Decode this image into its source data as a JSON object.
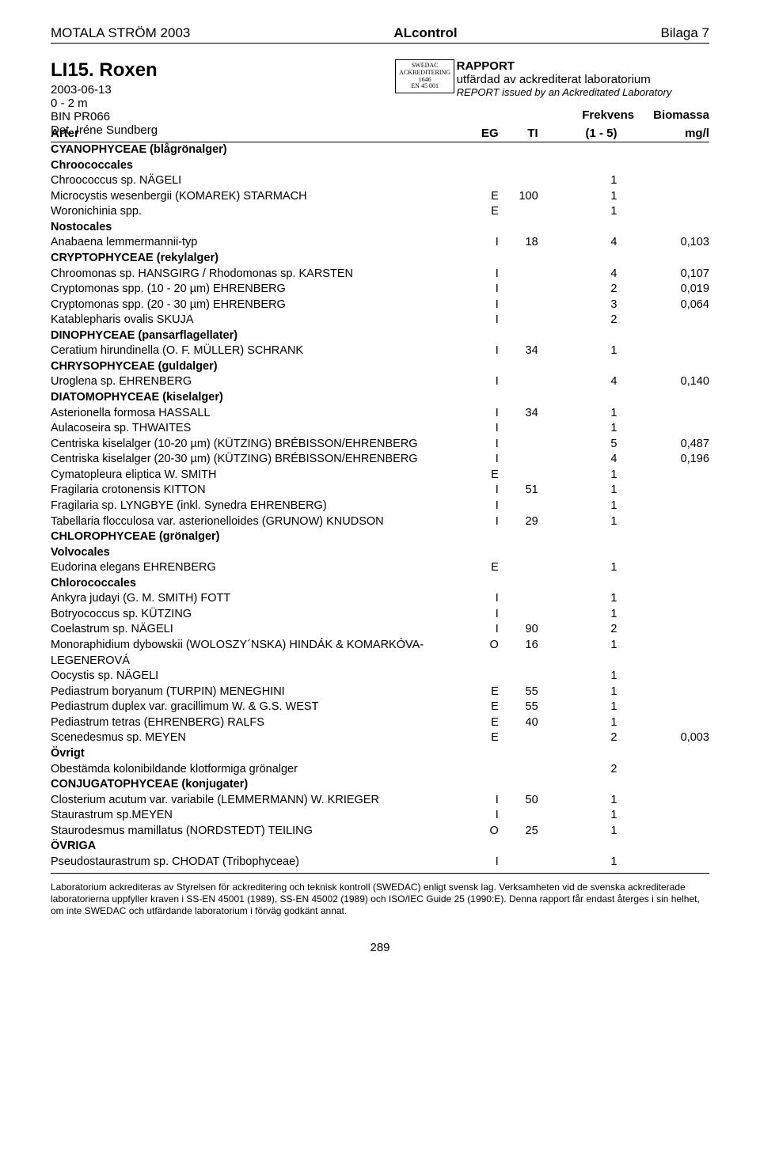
{
  "topbar": {
    "left": "MOTALA STRÖM 2003",
    "center": "ALcontrol",
    "right": "Bilaga 7"
  },
  "title": {
    "site": "LI15. Roxen",
    "date": "2003-06-13",
    "depth": "0 - 2 m",
    "bin": "BIN PR066",
    "det": "Det. Iréne Sundberg"
  },
  "logo": {
    "line1": "SWEDAC",
    "line2": "ACKREDITERING",
    "line3": "1646",
    "line4": "EN 45 001"
  },
  "report": {
    "title": "RAPPORT",
    "line1": "utfärdad av ackrediterat laboratorium",
    "line2": "REPORT issued by an Ackreditated Laboratory"
  },
  "freq_bio": {
    "freq": "Frekvens",
    "bio": "Biomassa"
  },
  "header": {
    "arter": "Arter",
    "eg": "EG",
    "ti": "TI",
    "range": "(1 - 5)",
    "mgl": "mg/l"
  },
  "rows": [
    {
      "type": "group",
      "name": "CYANOPHYCEAE (blågrönalger)"
    },
    {
      "type": "subgroup",
      "name": "Chroococcales"
    },
    {
      "type": "species",
      "name": "Chroococcus sp. NÄGELI",
      "c3": "1"
    },
    {
      "type": "species",
      "name": "Microcystis wesenbergii (KOMAREK) STARMACH",
      "c1": "E",
      "c2": "100",
      "c3": "1"
    },
    {
      "type": "species",
      "name": "Woronichinia spp.",
      "c1": "E",
      "c3": "1"
    },
    {
      "type": "subgroup",
      "name": "Nostocales"
    },
    {
      "type": "species",
      "name": "Anabaena lemmermannii-typ",
      "c1": "I",
      "c2": "18",
      "c3": "4",
      "c4": "0,103"
    },
    {
      "type": "group",
      "name": "CRYPTOPHYCEAE (rekylalger)"
    },
    {
      "type": "species",
      "name": "Chroomonas sp. HANSGIRG / Rhodomonas sp. KARSTEN",
      "c1": "I",
      "c3": "4",
      "c4": "0,107"
    },
    {
      "type": "species",
      "name": "Cryptomonas spp. (10 - 20 µm) EHRENBERG",
      "c1": "I",
      "c3": "2",
      "c4": "0,019"
    },
    {
      "type": "species",
      "name": "Cryptomonas spp. (20 - 30 µm) EHRENBERG",
      "c1": "I",
      "c3": "3",
      "c4": "0,064"
    },
    {
      "type": "species",
      "name": "Katablepharis ovalis SKUJA",
      "c1": "I",
      "c3": "2"
    },
    {
      "type": "group",
      "name": "DINOPHYCEAE (pansarflagellater)"
    },
    {
      "type": "species",
      "name": "Ceratium hirundinella (O. F. MÜLLER) SCHRANK",
      "c1": "I",
      "c2": "34",
      "c3": "1"
    },
    {
      "type": "group",
      "name": "CHRYSOPHYCEAE (guldalger)"
    },
    {
      "type": "species",
      "name": "Uroglena sp. EHRENBERG",
      "c1": "I",
      "c3": "4",
      "c4": "0,140"
    },
    {
      "type": "group",
      "name": "DIATOMOPHYCEAE (kiselalger)"
    },
    {
      "type": "species",
      "name": "Asterionella formosa HASSALL",
      "c1": "I",
      "c2": "34",
      "c3": "1"
    },
    {
      "type": "species",
      "name": "Aulacoseira sp. THWAITES",
      "c1": "I",
      "c3": "1"
    },
    {
      "type": "species",
      "name": "Centriska kiselalger (10-20 µm) (KÜTZING) BRÉBISSON/EHRENBERG",
      "c1": "I",
      "c3": "5",
      "c4": "0,487"
    },
    {
      "type": "species",
      "name": "Centriska kiselalger (20-30 µm) (KÜTZING) BRÉBISSON/EHRENBERG",
      "c1": "I",
      "c3": "4",
      "c4": "0,196"
    },
    {
      "type": "species",
      "name": "Cymatopleura eliptica W. SMITH",
      "c1": "E",
      "c3": "1"
    },
    {
      "type": "species",
      "name": "Fragilaria crotonensis KITTON",
      "c1": "I",
      "c2": "51",
      "c3": "1"
    },
    {
      "type": "species",
      "name": "Fragilaria sp. LYNGBYE (inkl. Synedra EHRENBERG)",
      "c1": "I",
      "c3": "1"
    },
    {
      "type": "species",
      "name": "Tabellaria flocculosa var. asterionelloides (GRUNOW) KNUDSON",
      "c1": "I",
      "c2": "29",
      "c3": "1"
    },
    {
      "type": "group",
      "name": "CHLOROPHYCEAE (grönalger)"
    },
    {
      "type": "subgroup",
      "name": "Volvocales"
    },
    {
      "type": "species",
      "name": "Eudorina elegans EHRENBERG",
      "c1": "E",
      "c3": "1"
    },
    {
      "type": "subgroup",
      "name": "Chlorococcales"
    },
    {
      "type": "species",
      "name": "Ankyra judayi (G. M. SMITH) FOTT",
      "c1": "I",
      "c3": "1"
    },
    {
      "type": "species",
      "name": "Botryococcus sp. KÜTZING",
      "c1": "I",
      "c3": "1"
    },
    {
      "type": "species",
      "name": "Coelastrum sp. NÄGELI",
      "c1": "I",
      "c2": "90",
      "c3": "2"
    },
    {
      "type": "species",
      "name": "Monoraphidium dybowskii (WOLOSZY´NSKA) HINDÁK & KOMARKÓVA-LEGENEROVÁ",
      "c1": "O",
      "c2": "16",
      "c3": "1"
    },
    {
      "type": "species",
      "name": "Oocystis sp. NÄGELI",
      "c3": "1"
    },
    {
      "type": "species",
      "name": "Pediastrum boryanum (TURPIN) MENEGHINI",
      "c1": "E",
      "c2": "55",
      "c3": "1"
    },
    {
      "type": "species",
      "name": "Pediastrum duplex var. gracillimum W. & G.S. WEST",
      "c1": "E",
      "c2": "55",
      "c3": "1"
    },
    {
      "type": "species",
      "name": "Pediastrum tetras (EHRENBERG) RALFS",
      "c1": "E",
      "c2": "40",
      "c3": "1"
    },
    {
      "type": "species",
      "name": "Scenedesmus sp. MEYEN",
      "c1": "E",
      "c3": "2",
      "c4": "0,003"
    },
    {
      "type": "subgroup",
      "name": "Övrigt"
    },
    {
      "type": "species",
      "name": "Obestämda kolonibildande klotformiga grönalger",
      "c3": "2"
    },
    {
      "type": "group",
      "name": "CONJUGATOPHYCEAE (konjugater)"
    },
    {
      "type": "species",
      "name": "Closterium acutum var. variabile (LEMMERMANN) W. KRIEGER",
      "c1": "I",
      "c2": "50",
      "c3": "1"
    },
    {
      "type": "species",
      "name": "Staurastrum sp.MEYEN",
      "c1": "I",
      "c3": "1"
    },
    {
      "type": "species",
      "name": "Staurodesmus mamillatus (NORDSTEDT) TEILING",
      "c1": "O",
      "c2": "25",
      "c3": "1"
    },
    {
      "type": "group",
      "name": "ÖVRIGA"
    },
    {
      "type": "species",
      "name": "Pseudostaurastrum sp. CHODAT (Tribophyceae)",
      "c1": "I",
      "c3": "1"
    }
  ],
  "footnote": "Laboratorium ackrediteras av Styrelsen för ackreditering och teknisk kontroll (SWEDAC) enligt svensk lag. Verksamheten vid de svenska ackrediterade laboratorierna uppfyller kraven i SS-EN 45001 (1989), SS-EN 45002 (1989) och ISO/IEC Guide 25 (1990:E). Denna rapport får endast återges i sin helhet, om inte SWEDAC och utfärdande laboratorium i förväg godkänt annat.",
  "pagenum": "289"
}
